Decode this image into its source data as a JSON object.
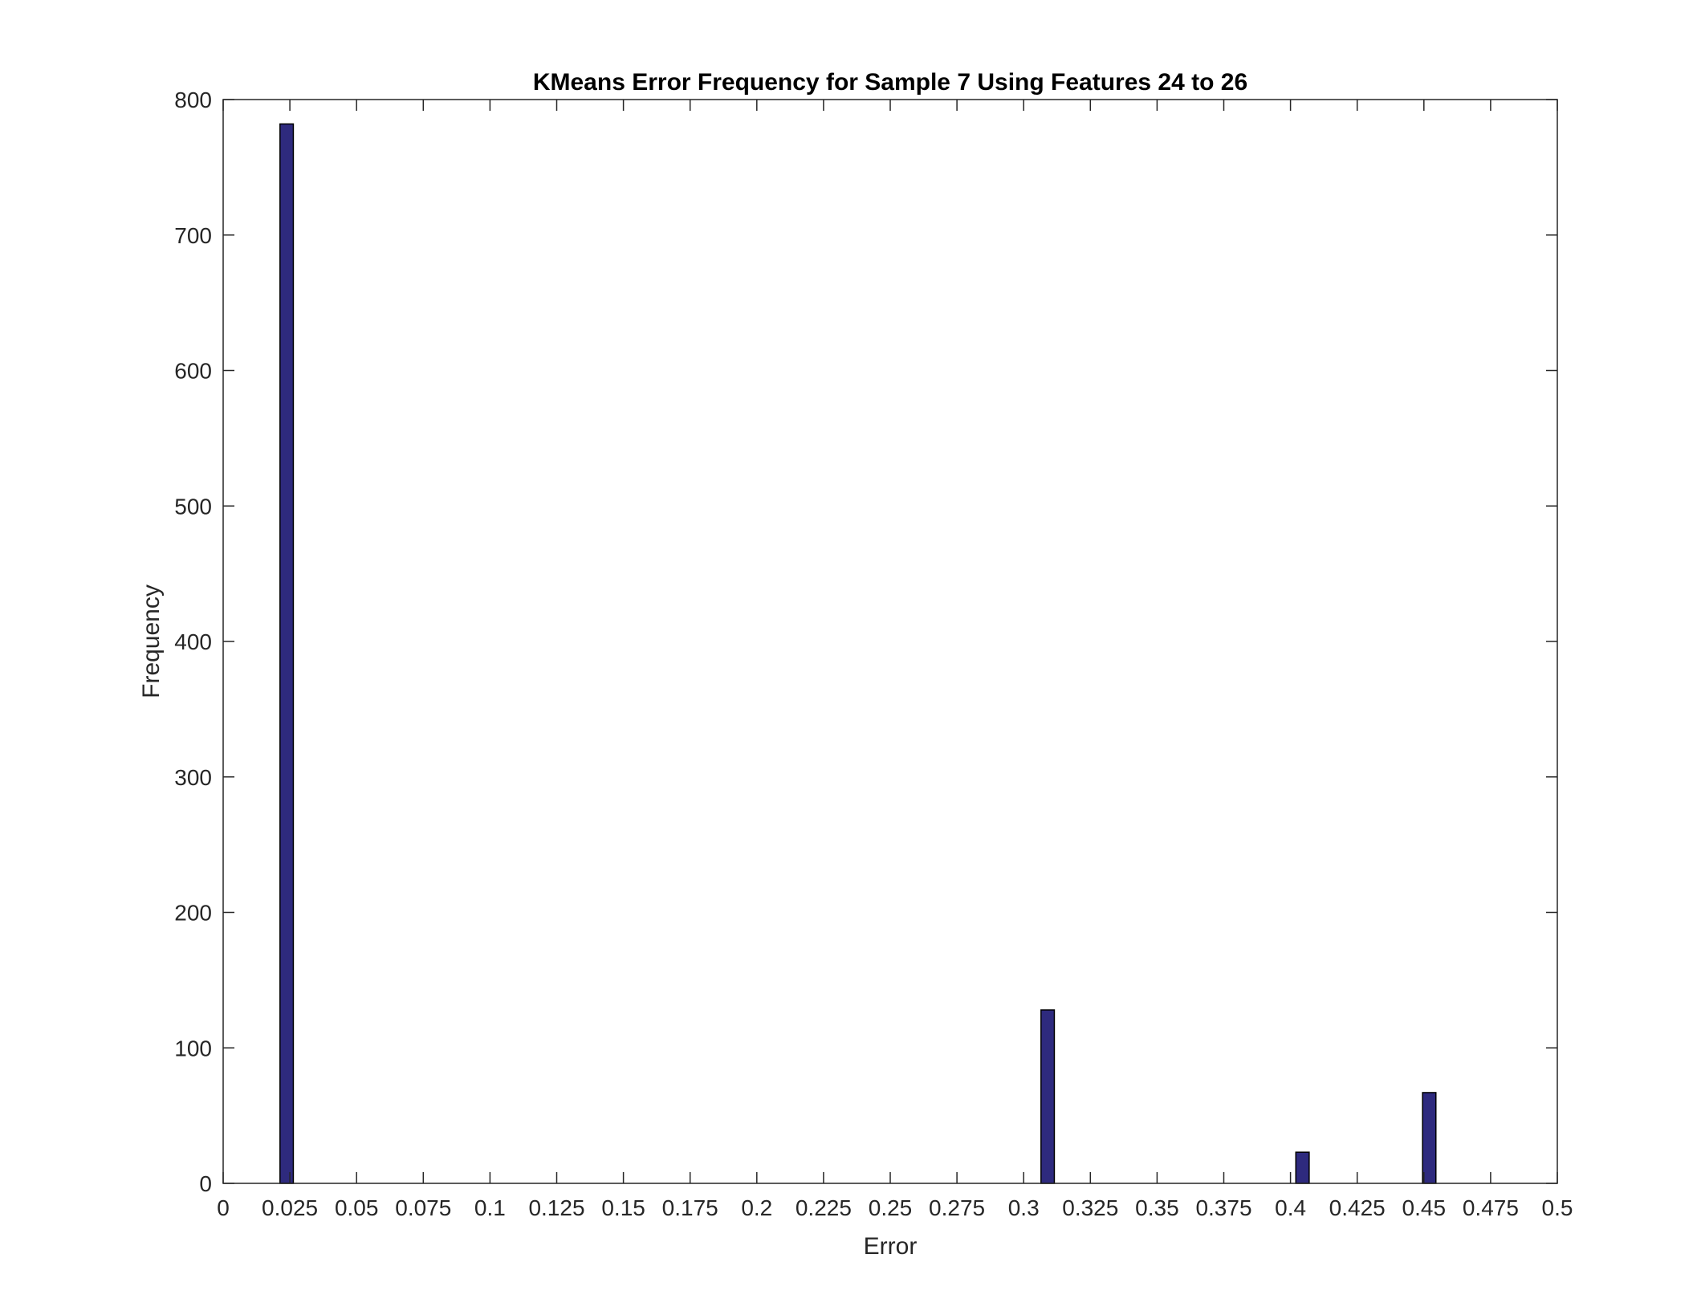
{
  "chart_data": {
    "type": "bar",
    "title": "KMeans Error Frequency for Sample 7 Using Features 24 to 26",
    "xlabel": "Error",
    "ylabel": "Frequency",
    "xlim": [
      0,
      0.5
    ],
    "ylim": [
      0,
      800
    ],
    "x_ticks": [
      "0",
      "0.025",
      "0.05",
      "0.075",
      "0.1",
      "0.125",
      "0.15",
      "0.175",
      "0.2",
      "0.225",
      "0.25",
      "0.275",
      "0.3",
      "0.325",
      "0.35",
      "0.375",
      "0.4",
      "0.425",
      "0.45",
      "0.475",
      "0.5"
    ],
    "y_ticks": [
      "0",
      "100",
      "200",
      "300",
      "400",
      "500",
      "600",
      "700",
      "800"
    ],
    "bin_width": 0.005,
    "bars": [
      {
        "x": 0.0238,
        "value": 782
      },
      {
        "x": 0.309,
        "value": 128
      },
      {
        "x": 0.4045,
        "value": 23
      },
      {
        "x": 0.452,
        "value": 67
      }
    ],
    "grid": false,
    "legend": null,
    "colors": {
      "bar_fill": "#2e2a7e",
      "bar_edge": "#000000",
      "axis": "#262626"
    }
  }
}
